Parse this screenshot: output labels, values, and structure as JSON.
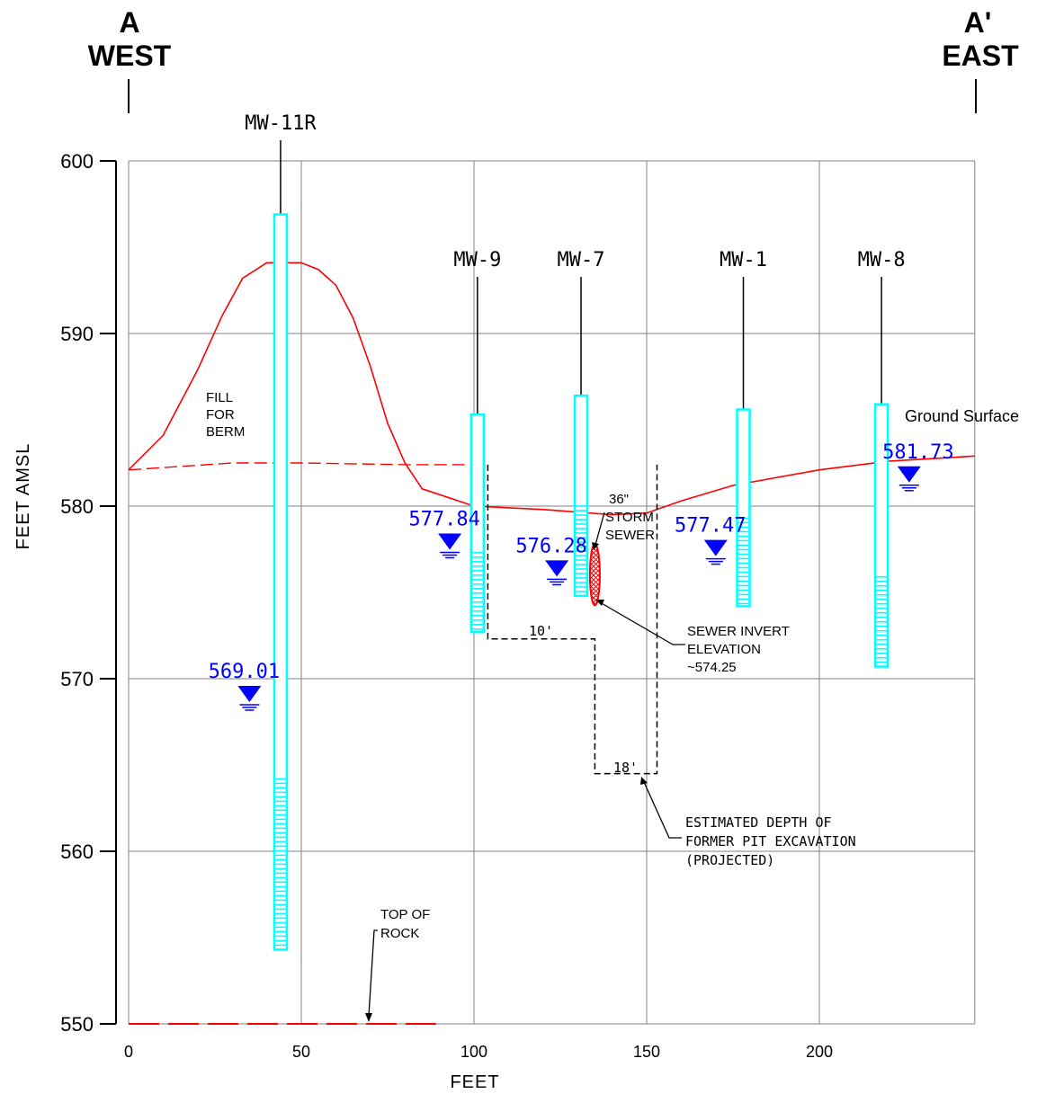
{
  "header": {
    "west_letter": "A",
    "west_word": "WEST",
    "east_letter": "A'",
    "east_word": "EAST"
  },
  "axes": {
    "ylabel": "FEET AMSL",
    "xlabel": "FEET",
    "y_ticks": [
      "600",
      "590",
      "580",
      "570",
      "560",
      "550"
    ],
    "x_ticks": [
      "0",
      "50",
      "100",
      "150",
      "200"
    ]
  },
  "wells": [
    {
      "name": "MW-11R",
      "x_ft": 44,
      "top_elev": 596.9,
      "screen_top": 564.2,
      "bottom_elev": 554.3,
      "water_level": "569.01",
      "wl_x_ft": 35
    },
    {
      "name": "MW-9",
      "x_ft": 101,
      "top_elev": 585.3,
      "screen_top": 577.3,
      "bottom_elev": 572.7,
      "water_level": "577.84",
      "wl_x_ft": 93
    },
    {
      "name": "MW-7",
      "x_ft": 131,
      "top_elev": 586.4,
      "screen_top": 580.0,
      "bottom_elev": 574.8,
      "water_level": "576.28",
      "wl_x_ft": 124
    },
    {
      "name": "MW-1",
      "x_ft": 178,
      "top_elev": 585.6,
      "screen_top": 579.3,
      "bottom_elev": 574.2,
      "water_level": "577.47",
      "wl_x_ft": 170
    },
    {
      "name": "MW-8",
      "x_ft": 218,
      "top_elev": 585.9,
      "screen_top": 575.9,
      "bottom_elev": 570.7,
      "water_level": "581.73",
      "wl_x_ft": 226
    }
  ],
  "annotations": {
    "fill_berm": [
      "FILL",
      "FOR",
      "BERM"
    ],
    "ground_surface": "Ground Surface",
    "storm_sewer": [
      "36\"",
      "STORM",
      "SEWER"
    ],
    "sewer_invert": [
      "SEWER INVERT",
      "ELEVATION",
      "~574.25"
    ],
    "dim_10": "10'",
    "dim_18": "18'",
    "excavation": [
      "ESTIMATED DEPTH OF",
      "FORMER PIT EXCAVATION",
      "(PROJECTED)"
    ],
    "top_of_rock": [
      "TOP OF",
      "ROCK"
    ]
  },
  "chart_data": {
    "type": "cross-section",
    "xlabel": "FEET",
    "ylabel": "FEET AMSL",
    "xlim": [
      0,
      245
    ],
    "ylim": [
      550,
      600
    ],
    "ground_surface": [
      [
        0,
        582.1
      ],
      [
        10,
        584.1
      ],
      [
        20,
        587.9
      ],
      [
        27,
        591.0
      ],
      [
        33,
        593.2
      ],
      [
        40,
        594.1
      ],
      [
        50,
        594.1
      ],
      [
        55,
        593.7
      ],
      [
        60,
        592.8
      ],
      [
        65,
        590.9
      ],
      [
        70,
        588.1
      ],
      [
        75,
        584.8
      ],
      [
        80,
        582.5
      ],
      [
        85,
        581.0
      ],
      [
        100,
        580.0
      ],
      [
        120,
        579.8
      ],
      [
        140,
        579.5
      ],
      [
        150,
        579.6
      ],
      [
        160,
        580.3
      ],
      [
        175,
        581.2
      ],
      [
        200,
        582.1
      ],
      [
        220,
        582.6
      ],
      [
        245,
        582.9
      ]
    ],
    "original_grade": [
      [
        0,
        582.1
      ],
      [
        30,
        582.5
      ],
      [
        50,
        582.5
      ],
      [
        80,
        582.4
      ],
      [
        100,
        582.4
      ]
    ],
    "top_of_rock_elev": 550,
    "top_of_rock_x": [
      0,
      89
    ],
    "excavation_outline": [
      [
        104,
        582.4
      ],
      [
        104,
        572.3
      ],
      [
        135,
        572.3
      ],
      [
        135,
        564.5
      ],
      [
        153,
        564.5
      ],
      [
        153,
        582.4
      ]
    ],
    "sewer": {
      "x_ft": 135,
      "top_elev": 577.8,
      "invert_elev": 574.25
    },
    "colors": {
      "ground": "#ff0000",
      "well": "#00ffff",
      "water": "#0000ff",
      "grid": "#808080",
      "sewer": "#ff0000"
    }
  }
}
